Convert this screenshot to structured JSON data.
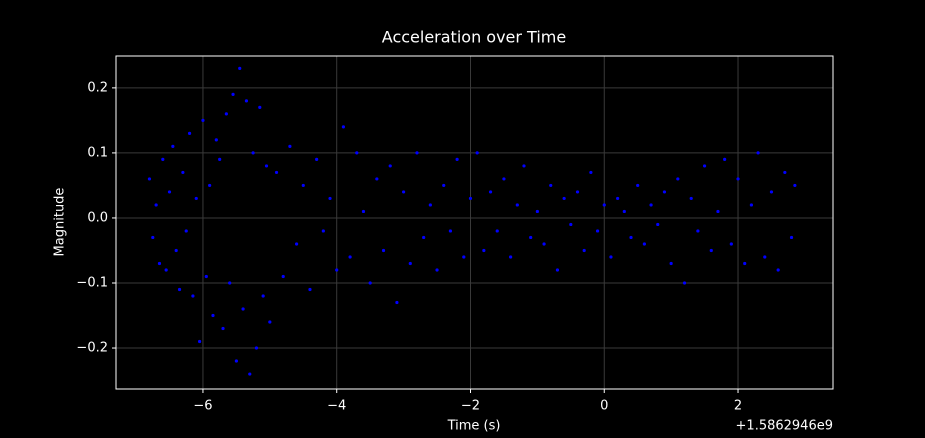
{
  "chart_data": {
    "type": "scatter",
    "title": "Acceleration over Time",
    "x_label": "Time (s)",
    "y_label": "Magnitude",
    "x_offset": "+1.5862946e9",
    "color": "#0000ff",
    "grid": true,
    "xlim": [
      -7.3,
      3.42
    ],
    "ylim": [
      -0.263,
      0.249
    ],
    "xticks": [
      {
        "value": -6,
        "label": "−6"
      },
      {
        "value": -4,
        "label": "−4"
      },
      {
        "value": -2,
        "label": "−2"
      },
      0,
      2
    ],
    "yticks": [
      {
        "value": -0.2,
        "label": "−0.2"
      },
      {
        "value": -0.1,
        "label": "−0.1"
      },
      {
        "value": 0,
        "label": "0.0"
      },
      0.1,
      0.2
    ],
    "x": [
      -6.8,
      -6.75,
      -6.7,
      -6.65,
      -6.6,
      -6.55,
      -6.5,
      -6.45,
      -6.4,
      -6.35,
      -6.3,
      -6.25,
      -6.2,
      -6.15,
      -6.1,
      -6.05,
      -6.0,
      -5.95,
      -5.9,
      -5.85,
      -5.8,
      -5.75,
      -5.7,
      -5.65,
      -5.6,
      -5.55,
      -5.5,
      -5.45,
      -5.4,
      -5.35,
      -5.3,
      -5.25,
      -5.2,
      -5.15,
      -5.1,
      -5.05,
      -5.0,
      -4.9,
      -4.8,
      -4.7,
      -4.6,
      -4.5,
      -4.4,
      -4.3,
      -4.2,
      -4.1,
      -4.0,
      -3.9,
      -3.8,
      -3.7,
      -3.6,
      -3.5,
      -3.4,
      -3.3,
      -3.2,
      -3.1,
      -3.0,
      -2.9,
      -2.8,
      -2.7,
      -2.6,
      -2.5,
      -2.4,
      -2.3,
      -2.2,
      -2.1,
      -2.0,
      -1.9,
      -1.8,
      -1.7,
      -1.6,
      -1.5,
      -1.4,
      -1.3,
      -1.2,
      -1.1,
      -1.0,
      -0.9,
      -0.8,
      -0.7,
      -0.6,
      -0.5,
      -0.4,
      -0.3,
      -0.2,
      -0.1,
      0.0,
      0.1,
      0.2,
      0.3,
      0.4,
      0.5,
      0.6,
      0.7,
      0.8,
      0.9,
      1.0,
      1.1,
      1.2,
      1.3,
      1.4,
      1.5,
      1.6,
      1.7,
      1.8,
      1.9,
      2.0,
      2.1,
      2.2,
      2.3,
      2.4,
      2.5,
      2.6,
      2.7,
      2.8,
      2.85
    ],
    "values": [
      0.06,
      -0.03,
      0.02,
      -0.07,
      0.09,
      -0.08,
      0.04,
      0.11,
      -0.05,
      -0.11,
      0.07,
      -0.02,
      0.13,
      -0.12,
      0.03,
      -0.19,
      0.15,
      -0.09,
      0.05,
      -0.15,
      0.12,
      0.09,
      -0.17,
      0.16,
      -0.1,
      0.19,
      -0.22,
      0.23,
      -0.14,
      0.18,
      -0.24,
      0.1,
      -0.2,
      0.17,
      -0.12,
      0.08,
      -0.16,
      0.07,
      -0.09,
      0.11,
      -0.04,
      0.05,
      -0.11,
      0.09,
      -0.02,
      0.03,
      -0.08,
      0.14,
      -0.06,
      0.1,
      0.01,
      -0.1,
      0.06,
      -0.05,
      0.08,
      -0.13,
      0.04,
      -0.07,
      0.1,
      -0.03,
      0.02,
      -0.08,
      0.05,
      -0.02,
      0.09,
      -0.06,
      0.03,
      0.1,
      -0.05,
      0.04,
      -0.02,
      0.06,
      -0.06,
      0.02,
      0.08,
      -0.03,
      0.01,
      -0.04,
      0.05,
      -0.08,
      0.03,
      -0.01,
      0.04,
      -0.05,
      0.07,
      -0.02,
      0.02,
      -0.06,
      0.03,
      0.01,
      -0.03,
      0.05,
      -0.04,
      0.02,
      -0.01,
      0.04,
      -0.07,
      0.06,
      -0.1,
      0.03,
      -0.02,
      0.08,
      -0.05,
      0.01,
      0.09,
      -0.04,
      0.06,
      -0.07,
      0.02,
      0.1,
      -0.06,
      0.04,
      -0.08,
      0.07,
      -0.03,
      0.05
    ]
  }
}
